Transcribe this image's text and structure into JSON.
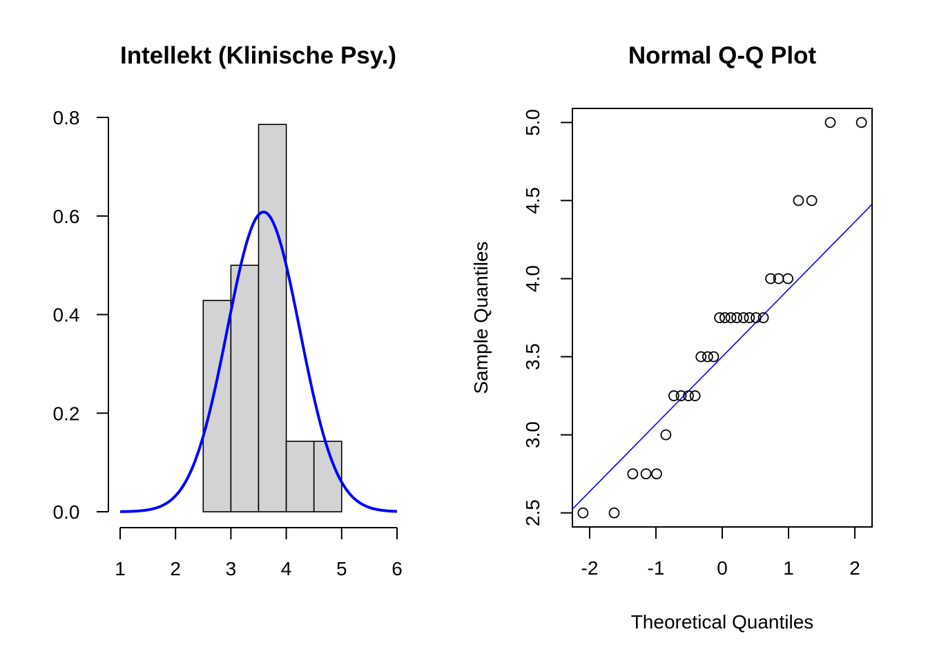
{
  "colors": {
    "bar_fill": "#d3d3d3",
    "density_line": "#0000ff",
    "qq_line": "#0000ff",
    "axis": "#000000"
  },
  "chart_data": [
    {
      "type": "bar",
      "title": "Intellekt (Klinische Psy.)",
      "xlabel": "",
      "ylabel": "",
      "bins": [
        [
          2.5,
          3.0
        ],
        [
          3.0,
          3.5
        ],
        [
          3.5,
          4.0
        ],
        [
          4.0,
          4.5
        ],
        [
          4.5,
          5.0
        ]
      ],
      "values": [
        0.4286,
        0.5,
        0.7857,
        0.1429,
        0.1429
      ],
      "overlay": {
        "type": "normal_density",
        "mean": 3.589,
        "sd": 0.656
      },
      "xlim": [
        1,
        6
      ],
      "ylim": [
        0,
        0.8
      ],
      "xticks": [
        "1",
        "2",
        "3",
        "4",
        "5",
        "6"
      ],
      "yticks": [
        "0.0",
        "0.2",
        "0.4",
        "0.6",
        "0.8"
      ],
      "grid": false,
      "box": false
    },
    {
      "type": "scatter",
      "title": "Normal Q-Q Plot",
      "xlabel": "Theoretical Quantiles",
      "ylabel": "Sample Quantiles",
      "points": [
        [
          -2.1,
          2.5
        ],
        [
          -1.63,
          2.5
        ],
        [
          -1.35,
          2.75
        ],
        [
          -1.15,
          2.75
        ],
        [
          -0.99,
          2.75
        ],
        [
          -0.85,
          3.0
        ],
        [
          -0.73,
          3.25
        ],
        [
          -0.62,
          3.25
        ],
        [
          -0.51,
          3.25
        ],
        [
          -0.41,
          3.25
        ],
        [
          -0.32,
          3.5
        ],
        [
          -0.22,
          3.5
        ],
        [
          -0.13,
          3.5
        ],
        [
          -0.04,
          3.75
        ],
        [
          0.04,
          3.75
        ],
        [
          0.13,
          3.75
        ],
        [
          0.22,
          3.75
        ],
        [
          0.32,
          3.75
        ],
        [
          0.41,
          3.75
        ],
        [
          0.51,
          3.75
        ],
        [
          0.62,
          3.75
        ],
        [
          0.73,
          4.0
        ],
        [
          0.85,
          4.0
        ],
        [
          0.99,
          4.0
        ],
        [
          1.15,
          4.5
        ],
        [
          1.35,
          4.5
        ],
        [
          1.63,
          5.0
        ],
        [
          2.1,
          5.0
        ]
      ],
      "reference_line": {
        "intercept": 3.5,
        "slope": 0.4318
      },
      "xlim": [
        -2.26,
        2.26
      ],
      "ylim": [
        2.41,
        5.09
      ],
      "xticks": [
        "-2",
        "-1",
        "0",
        "1",
        "2"
      ],
      "yticks": [
        "2.5",
        "3.0",
        "3.5",
        "4.0",
        "4.5",
        "5.0"
      ],
      "grid": false,
      "box": true
    }
  ]
}
